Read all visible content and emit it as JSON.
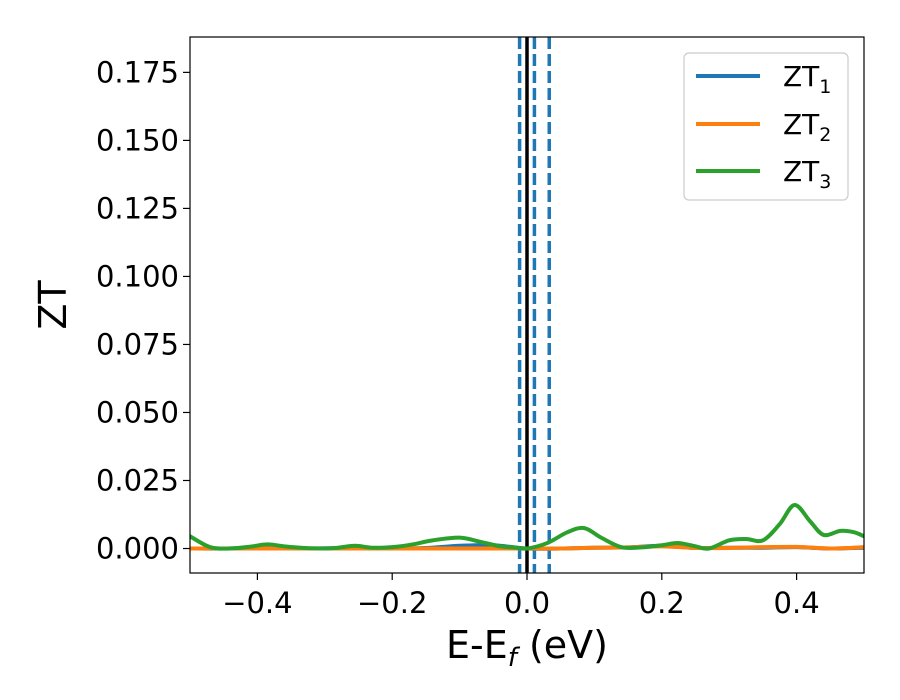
{
  "chart_data": {
    "type": "line",
    "xlabel": "E-E",
    "xlabel_sub": "f",
    "xlabel_unit": " (eV)",
    "ylabel": "ZT",
    "xlim": [
      -0.5,
      0.5
    ],
    "ylim": [
      -0.009,
      0.188
    ],
    "xticks": [
      -0.4,
      -0.2,
      0.0,
      0.2,
      0.4
    ],
    "xtick_labels": [
      "−0.4",
      "−0.2",
      "0.0",
      "0.2",
      "0.4"
    ],
    "yticks": [
      0.0,
      0.025,
      0.05,
      0.075,
      0.1,
      0.125,
      0.15,
      0.175
    ],
    "ytick_labels": [
      "0.000",
      "0.025",
      "0.050",
      "0.075",
      "0.100",
      "0.125",
      "0.150",
      "0.175"
    ],
    "grid": false,
    "legend_position": "top-right",
    "vertical_lines": [
      {
        "x": 0.0,
        "style": "solid",
        "color": "#000000"
      },
      {
        "x": -0.011,
        "style": "dashed",
        "color": "#1f77b4"
      },
      {
        "x": 0.011,
        "style": "dashed",
        "color": "#1f77b4"
      },
      {
        "x": 0.033,
        "style": "dashed",
        "color": "#1f77b4"
      }
    ],
    "series": [
      {
        "name": "ZT",
        "sub": "1",
        "color": "#1f77b4",
        "x": [
          -0.5,
          -0.45,
          -0.4,
          -0.35,
          -0.3,
          -0.25,
          -0.2,
          -0.15,
          -0.1,
          -0.05,
          0.0,
          0.05,
          0.1,
          0.15,
          0.2,
          0.25,
          0.3,
          0.35,
          0.4,
          0.45,
          0.5
        ],
        "y": [
          0.0,
          0.0,
          0.0003,
          0.0,
          0.0001,
          0.0002,
          0.0001,
          0.0002,
          0.001,
          0.0012,
          0.0,
          0.0,
          0.0003,
          0.0004,
          0.001,
          0.0002,
          0.0003,
          0.0003,
          0.0005,
          0.0,
          0.0003
        ]
      },
      {
        "name": "ZT",
        "sub": "2",
        "color": "#ff7f0e",
        "x": [
          -0.5,
          -0.45,
          -0.4,
          -0.35,
          -0.3,
          -0.25,
          -0.2,
          -0.15,
          -0.1,
          -0.05,
          0.0,
          0.05,
          0.1,
          0.15,
          0.2,
          0.25,
          0.3,
          0.35,
          0.4,
          0.45,
          0.5
        ],
        "y": [
          0.0,
          0.0,
          0.0,
          0.0,
          0.0,
          0.0,
          0.0,
          0.0,
          0.0,
          0.0,
          0.0,
          0.0,
          0.0003,
          0.0004,
          0.0008,
          0.0002,
          0.0002,
          0.0005,
          0.0006,
          0.0,
          0.0005
        ]
      },
      {
        "name": "ZT",
        "sub": "3",
        "color": "#2ca02c",
        "x": [
          -0.5,
          -0.47,
          -0.44,
          -0.41,
          -0.385,
          -0.36,
          -0.33,
          -0.3,
          -0.28,
          -0.255,
          -0.23,
          -0.2,
          -0.17,
          -0.14,
          -0.1,
          -0.07,
          -0.04,
          -0.02,
          0.0,
          0.03,
          0.06,
          0.085,
          0.11,
          0.14,
          0.17,
          0.2,
          0.225,
          0.25,
          0.27,
          0.3,
          0.325,
          0.35,
          0.375,
          0.397,
          0.42,
          0.44,
          0.465,
          0.485,
          0.5
        ],
        "y": [
          0.0045,
          0.0005,
          0.0,
          0.0007,
          0.0015,
          0.0008,
          0.0002,
          0.0,
          0.0003,
          0.001,
          0.0003,
          0.0005,
          0.0015,
          0.003,
          0.004,
          0.0025,
          0.0008,
          0.0004,
          0.0,
          0.002,
          0.006,
          0.0075,
          0.004,
          0.0005,
          0.0004,
          0.0012,
          0.002,
          0.0008,
          0.0,
          0.003,
          0.0035,
          0.003,
          0.009,
          0.016,
          0.01,
          0.005,
          0.0065,
          0.006,
          0.0045
        ]
      }
    ]
  }
}
